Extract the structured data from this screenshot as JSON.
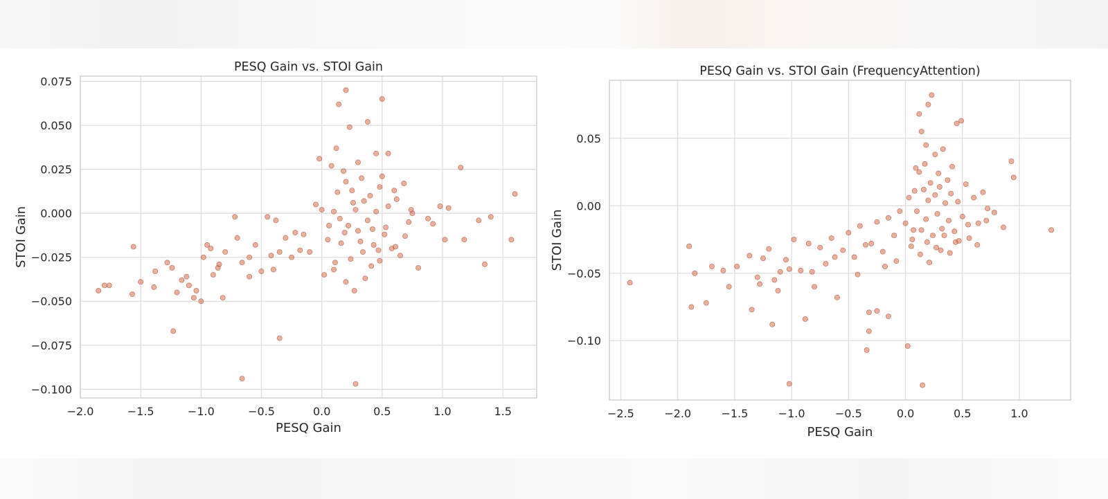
{
  "chart_data": [
    {
      "type": "scatter",
      "title": "PESQ Gain vs. STOI Gain",
      "xlabel": "PESQ Gain",
      "ylabel": "STOI Gain",
      "xlim": [
        -2.0,
        1.78
      ],
      "ylim": [
        -0.105,
        0.078
      ],
      "xticks": [
        -2.0,
        -1.5,
        -1.0,
        -0.5,
        0.0,
        0.5,
        1.0,
        1.5
      ],
      "xtick_labels": [
        "−2.0",
        "−1.5",
        "−1.0",
        "−0.5",
        "0.0",
        "0.5",
        "1.0",
        "1.5"
      ],
      "yticks": [
        -0.1,
        -0.075,
        -0.05,
        -0.025,
        0.0,
        0.025,
        0.05,
        0.075
      ],
      "ytick_labels": [
        "−0.100",
        "−0.075",
        "−0.050",
        "−0.025",
        "0.000",
        "0.025",
        "0.050",
        "0.075"
      ],
      "grid": true,
      "marker_color": "#d9704f",
      "x": [
        -1.85,
        -1.8,
        -1.76,
        -1.57,
        -1.56,
        -1.5,
        -1.39,
        -1.38,
        -1.28,
        -1.24,
        -1.2,
        -1.16,
        -1.12,
        -1.1,
        -1.06,
        -1.04,
        -1.0,
        -0.98,
        -0.95,
        -0.9,
        -0.86,
        -0.82,
        -0.8,
        -0.72,
        -0.66,
        -0.6,
        -0.55,
        -0.5,
        -0.45,
        -0.42,
        -0.38,
        -0.35,
        -0.3,
        -0.22,
        -0.18,
        -0.1,
        -0.05,
        0.0,
        0.05,
        0.1,
        0.13,
        0.15,
        0.18,
        0.2,
        0.22,
        0.25,
        0.28,
        0.3,
        0.33,
        0.35,
        0.38,
        0.4,
        0.43,
        0.45,
        0.48,
        0.5,
        0.52,
        0.55,
        0.58,
        0.6,
        0.62,
        0.65,
        0.68,
        0.72,
        0.75,
        0.8,
        0.88,
        0.92,
        0.98,
        1.02,
        1.05,
        1.15,
        1.18,
        1.3,
        1.35,
        1.4,
        1.57,
        1.6,
        -0.66,
        0.28,
        0.2,
        0.5,
        -1.23,
        -0.35,
        0.14,
        0.23,
        0.38,
        0.12,
        -0.02,
        0.08,
        0.3,
        0.45,
        0.55,
        0.06,
        0.16,
        0.24,
        0.34,
        0.42,
        0.1,
        0.2,
        0.27,
        0.36,
        0.48,
        -0.15,
        -0.25,
        -0.4,
        -0.6,
        -0.7,
        -0.85,
        -0.92,
        0.02,
        0.11,
        0.19,
        0.26,
        0.32,
        0.41,
        0.47,
        0.53,
        0.61,
        0.69,
        0.74
      ],
      "y": [
        -0.044,
        -0.041,
        -0.041,
        -0.046,
        -0.019,
        -0.039,
        -0.042,
        -0.033,
        -0.028,
        -0.031,
        -0.045,
        -0.038,
        -0.036,
        -0.041,
        -0.048,
        -0.044,
        -0.05,
        -0.025,
        -0.018,
        -0.035,
        -0.031,
        -0.048,
        -0.022,
        -0.002,
        -0.028,
        -0.025,
        -0.018,
        -0.033,
        -0.002,
        -0.024,
        -0.004,
        -0.022,
        -0.014,
        -0.011,
        -0.021,
        -0.022,
        0.005,
        0.002,
        -0.015,
        0.001,
        0.012,
        -0.003,
        0.024,
        0.018,
        -0.007,
        0.013,
        0.002,
        -0.01,
        0.02,
        0.007,
        -0.004,
        0.01,
        -0.018,
        0.001,
        0.015,
        0.021,
        -0.012,
        0.004,
        -0.02,
        0.013,
        0.008,
        -0.024,
        0.017,
        -0.005,
        0.0,
        -0.031,
        -0.003,
        -0.006,
        0.004,
        -0.015,
        0.003,
        0.026,
        -0.015,
        -0.004,
        -0.029,
        -0.002,
        -0.015,
        0.011,
        -0.094,
        -0.097,
        0.07,
        0.065,
        -0.067,
        -0.071,
        0.062,
        0.049,
        0.052,
        0.037,
        0.031,
        0.027,
        0.029,
        0.034,
        0.034,
        -0.007,
        -0.017,
        -0.026,
        -0.022,
        -0.009,
        -0.032,
        -0.039,
        -0.044,
        -0.037,
        -0.027,
        -0.012,
        -0.025,
        -0.032,
        -0.036,
        -0.014,
        -0.029,
        -0.02,
        -0.035,
        -0.028,
        -0.011,
        0.006,
        -0.016,
        -0.03,
        -0.021,
        -0.008,
        -0.019,
        -0.013,
        0.002
      ]
    },
    {
      "type": "scatter",
      "title": "PESQ Gain vs. STOI Gain (FrequencyAttention)",
      "xlabel": "PESQ Gain",
      "ylabel": "STOI Gain",
      "xlim": [
        -2.6,
        1.45
      ],
      "ylim": [
        -0.144,
        0.093
      ],
      "xticks": [
        -2.5,
        -2.0,
        -1.5,
        -1.0,
        -0.5,
        0.0,
        0.5,
        1.0
      ],
      "xtick_labels": [
        "−2.5",
        "−2.0",
        "−1.5",
        "−1.0",
        "−0.5",
        "0.0",
        "0.5",
        "1.0"
      ],
      "yticks": [
        -0.1,
        -0.05,
        0.0,
        0.05
      ],
      "ytick_labels": [
        "−0.10",
        "−0.05",
        "0.00",
        "0.05"
      ],
      "grid": true,
      "marker_color": "#d9704f",
      "x": [
        -2.42,
        -1.9,
        -1.88,
        -1.85,
        -1.75,
        -1.7,
        -1.6,
        -1.55,
        -1.48,
        -1.37,
        -1.35,
        -1.3,
        -1.25,
        -1.2,
        -1.17,
        -1.15,
        -1.1,
        -1.05,
        -1.02,
        -0.98,
        -0.92,
        -0.88,
        -0.85,
        -0.8,
        -0.75,
        -0.7,
        -0.65,
        -0.6,
        -0.55,
        -0.5,
        -0.45,
        -0.4,
        -0.35,
        -0.32,
        -0.3,
        -0.25,
        -0.2,
        -0.15,
        -0.1,
        -0.05,
        0.0,
        0.03,
        0.06,
        0.08,
        0.1,
        0.12,
        0.14,
        0.16,
        0.18,
        0.2,
        0.22,
        0.24,
        0.26,
        0.28,
        0.3,
        0.32,
        0.35,
        0.38,
        0.4,
        0.43,
        0.46,
        0.5,
        0.53,
        0.56,
        0.6,
        0.64,
        0.68,
        0.72,
        0.78,
        0.86,
        0.93,
        0.95,
        1.28,
        0.15,
        0.12,
        0.2,
        0.23,
        0.45,
        0.49,
        -1.02,
        0.14,
        -0.34,
        -0.32,
        0.02,
        -0.15,
        -0.25,
        0.18,
        0.26,
        0.33,
        0.41,
        0.09,
        0.17,
        0.29,
        0.37,
        0.05,
        0.13,
        0.21,
        0.31,
        0.44,
        -0.08,
        -0.18,
        -0.42,
        -0.62,
        -0.82,
        -1.12,
        -1.28,
        0.07,
        0.19,
        0.27,
        0.34,
        0.39,
        0.47,
        0.55,
        0.63,
        0.71
      ],
      "y": [
        -0.057,
        -0.03,
        -0.075,
        -0.05,
        -0.072,
        -0.045,
        -0.048,
        -0.06,
        -0.045,
        -0.037,
        -0.077,
        -0.053,
        -0.039,
        -0.032,
        -0.088,
        -0.055,
        -0.049,
        -0.04,
        -0.047,
        -0.025,
        -0.048,
        -0.084,
        -0.028,
        -0.06,
        -0.031,
        -0.043,
        -0.024,
        -0.068,
        -0.033,
        -0.02,
        -0.038,
        -0.015,
        -0.029,
        -0.079,
        -0.028,
        -0.012,
        -0.034,
        -0.009,
        -0.022,
        -0.004,
        -0.013,
        0.006,
        -0.025,
        0.011,
        -0.004,
        0.025,
        -0.018,
        0.012,
        -0.01,
        0.004,
        0.017,
        -0.022,
        0.008,
        -0.006,
        0.014,
        -0.017,
        0.002,
        -0.011,
        0.009,
        -0.019,
        0.003,
        -0.008,
        0.016,
        -0.024,
        0.006,
        -0.013,
        0.01,
        -0.002,
        -0.005,
        -0.016,
        0.033,
        0.021,
        -0.018,
        -0.133,
        0.068,
        0.075,
        0.082,
        0.061,
        0.063,
        -0.132,
        0.055,
        -0.107,
        -0.093,
        -0.104,
        -0.082,
        -0.078,
        0.045,
        0.038,
        0.042,
        0.029,
        0.028,
        0.031,
        0.024,
        0.019,
        -0.03,
        -0.036,
        -0.042,
        -0.033,
        -0.027,
        -0.041,
        -0.045,
        -0.051,
        -0.038,
        -0.049,
        -0.063,
        -0.058,
        -0.018,
        -0.027,
        -0.031,
        -0.022,
        -0.035,
        -0.026,
        -0.014,
        -0.029,
        -0.011
      ]
    }
  ]
}
